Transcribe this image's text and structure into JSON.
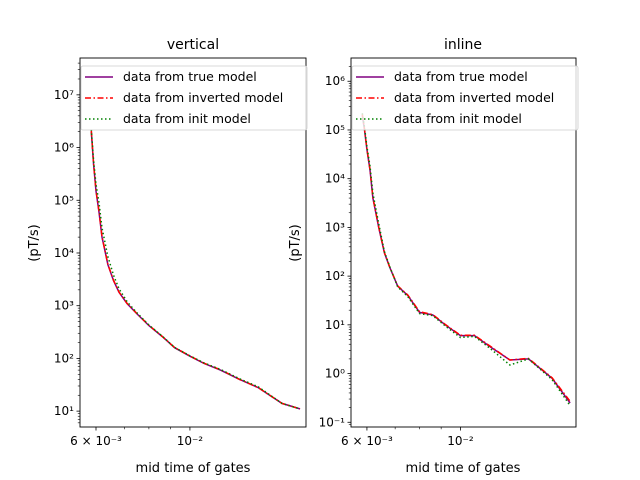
{
  "chart_data": [
    {
      "type": "line",
      "title": "vertical",
      "xlabel": "mid time of gates",
      "ylabel": "(pT/s)",
      "xscale": "log",
      "yscale": "log",
      "xlim": [
        0.0055,
        0.0188
      ],
      "ylim": [
        5.0,
        50000000
      ],
      "xtick_labels": [
        "6 × 10⁻³",
        "10⁻²"
      ],
      "ytick_labels": [
        "10¹",
        "10²",
        "10³",
        "10⁴",
        "10⁵",
        "10⁶",
        "10⁷"
      ],
      "legend_position": "top",
      "series": [
        {
          "name": "data from true model",
          "color": "#800080",
          "style": "solid",
          "x": [
            0.00585,
            0.00592,
            0.006,
            0.0061,
            0.0062,
            0.0064,
            0.0066,
            0.0068,
            0.0071,
            0.0075,
            0.008,
            0.0086,
            0.0092,
            0.01,
            0.0108,
            0.0118,
            0.0131,
            0.0145,
            0.0165,
            0.0182
          ],
          "y": [
            2000000,
            500000,
            150000,
            60000,
            20000,
            6000,
            3000,
            1800,
            1100,
            700,
            420,
            260,
            160,
            110,
            80,
            60,
            40,
            28,
            14,
            11
          ]
        },
        {
          "name": "data from inverted model",
          "color": "#ff0000",
          "style": "dashdot",
          "x": [
            0.00585,
            0.00592,
            0.006,
            0.0061,
            0.0062,
            0.0064,
            0.0066,
            0.0068,
            0.0071,
            0.0075,
            0.008,
            0.0086,
            0.0092,
            0.01,
            0.0108,
            0.0118,
            0.0131,
            0.0145,
            0.0165,
            0.0182
          ],
          "y": [
            2100000,
            520000,
            155000,
            62000,
            20500,
            6100,
            3050,
            1820,
            1110,
            705,
            425,
            262,
            161,
            111,
            81,
            61,
            40,
            28,
            14,
            11
          ]
        },
        {
          "name": "data from init model",
          "color": "#008000",
          "style": "dotted",
          "x": [
            0.00585,
            0.00592,
            0.006,
            0.0061,
            0.0062,
            0.0064,
            0.0066,
            0.0068,
            0.0071,
            0.0075,
            0.008,
            0.0086,
            0.0092,
            0.01,
            0.0108,
            0.0118,
            0.0131,
            0.0145,
            0.0165,
            0.0182
          ],
          "y": [
            2200000,
            600000,
            200000,
            90000,
            30000,
            8500,
            3800,
            2100,
            1200,
            730,
            430,
            265,
            162,
            112,
            82,
            62,
            41,
            29,
            14,
            11
          ]
        }
      ]
    },
    {
      "type": "line",
      "title": "inline",
      "xlabel": "mid time of gates",
      "ylabel": "(pT/s)",
      "xscale": "log",
      "yscale": "log",
      "xlim": [
        0.0055,
        0.0188
      ],
      "ylim": [
        0.08,
        3000000
      ],
      "xtick_labels": [
        "6 × 10⁻³",
        "10⁻²"
      ],
      "ytick_labels": [
        "10⁻¹",
        "10⁰",
        "10¹",
        "10²",
        "10³",
        "10⁴",
        "10⁵",
        "10⁶"
      ],
      "legend_position": "top",
      "series": [
        {
          "name": "data from true model",
          "color": "#800080",
          "style": "solid",
          "x": [
            0.00585,
            0.00592,
            0.006,
            0.0061,
            0.0062,
            0.0064,
            0.0066,
            0.0068,
            0.0071,
            0.0075,
            0.008,
            0.0086,
            0.0092,
            0.01,
            0.0108,
            0.0118,
            0.0131,
            0.0145,
            0.0165,
            0.0182
          ],
          "y": [
            200000,
            100000,
            40000,
            15000,
            4000,
            1000,
            300,
            150,
            62,
            40,
            18,
            16,
            10,
            6,
            6,
            3.5,
            1.9,
            2.0,
            0.8,
            0.25
          ]
        },
        {
          "name": "data from inverted model",
          "color": "#ff0000",
          "style": "dashdot",
          "x": [
            0.00585,
            0.00592,
            0.006,
            0.0061,
            0.0062,
            0.0064,
            0.0066,
            0.0068,
            0.0071,
            0.0075,
            0.008,
            0.0086,
            0.0092,
            0.01,
            0.0108,
            0.0118,
            0.0131,
            0.0145,
            0.0165,
            0.0182
          ],
          "y": [
            210000,
            105000,
            41000,
            15500,
            4100,
            1020,
            305,
            152,
            63,
            41,
            18.5,
            16.2,
            10.2,
            6.1,
            6.1,
            3.6,
            1.9,
            2.05,
            0.82,
            0.27
          ]
        },
        {
          "name": "data from init model",
          "color": "#008000",
          "style": "dotted",
          "x": [
            0.00585,
            0.00592,
            0.006,
            0.0061,
            0.0062,
            0.0064,
            0.0066,
            0.0068,
            0.0071,
            0.0075,
            0.008,
            0.0086,
            0.0092,
            0.01,
            0.0108,
            0.0118,
            0.0131,
            0.0145,
            0.0165,
            0.0182
          ],
          "y": [
            220000,
            115000,
            46000,
            18000,
            5000,
            1200,
            320,
            155,
            60,
            38,
            17,
            15.5,
            9.5,
            5.5,
            5.8,
            3.2,
            1.5,
            2.0,
            0.75,
            0.22
          ]
        }
      ]
    }
  ]
}
